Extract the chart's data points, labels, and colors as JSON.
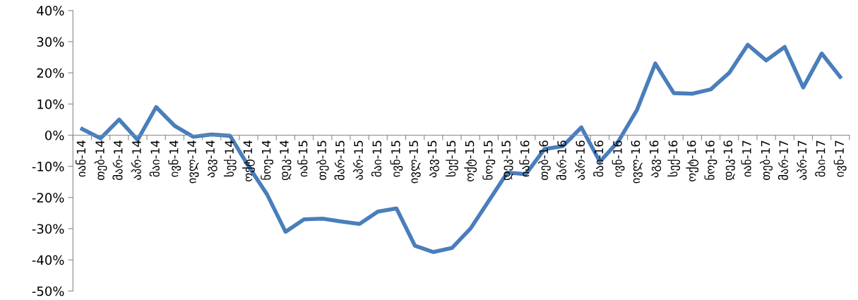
{
  "chart_data": {
    "type": "line",
    "categories": [
      "იან-14",
      "თებ-14",
      "მარ-14",
      "აპრ-14",
      "მაი-14",
      "ივნ-14",
      "ივლ-14",
      "აგვ-14",
      "სექ-14",
      "ოქტ-14",
      "ნოე-14",
      "დეკ-14",
      "იან-15",
      "თებ-15",
      "მარ-15",
      "აპრ-15",
      "მაი-15",
      "ივნ-15",
      "ივლ-15",
      "აგვ-15",
      "სექ-15",
      "ოქტ-15",
      "ნოე-15",
      "დეკ-15",
      "იან-16",
      "თებ-16",
      "მარ-16",
      "აპრ-16",
      "მაი-16",
      "ივნ-16",
      "ივლ-16",
      "აგვ-16",
      "სექ-16",
      "ოქტ-16",
      "ნოე-16",
      "დეკ-16",
      "იან-17",
      "თებ-17",
      "მარ-17",
      "აპრ-17",
      "მაი-17",
      "ივნ-17"
    ],
    "series": [
      {
        "color": "#4a7ebb",
        "values": [
          2,
          -1,
          5,
          -1.5,
          9,
          3,
          -0.5,
          0.2,
          -0.2,
          -10,
          -19,
          -31,
          -27,
          -26.8,
          -27.7,
          -28.5,
          -24.5,
          -23.5,
          -35.5,
          -37.5,
          -36.2,
          -30,
          -21,
          -12,
          -12.5,
          -4.5,
          -3.5,
          2.5,
          -8.5,
          -2,
          8,
          23,
          13.5,
          13.3,
          14.7,
          20,
          29,
          24,
          28.3,
          15.3,
          26.2,
          18.7
        ]
      }
    ],
    "ylim": [
      -50,
      40
    ],
    "yticks": [
      {
        "value": -50,
        "label": "-50%"
      },
      {
        "value": -40,
        "label": "-40%"
      },
      {
        "value": -30,
        "label": "-30%"
      },
      {
        "value": -20,
        "label": "-20%"
      },
      {
        "value": -10,
        "label": "-10%"
      },
      {
        "value": 0,
        "label": "0%"
      },
      {
        "value": 10,
        "label": "10%"
      },
      {
        "value": 20,
        "label": "20%"
      },
      {
        "value": 30,
        "label": "30%"
      },
      {
        "value": 40,
        "label": "40%"
      }
    ],
    "grid": false,
    "marker": "none",
    "line_style": "solid"
  }
}
